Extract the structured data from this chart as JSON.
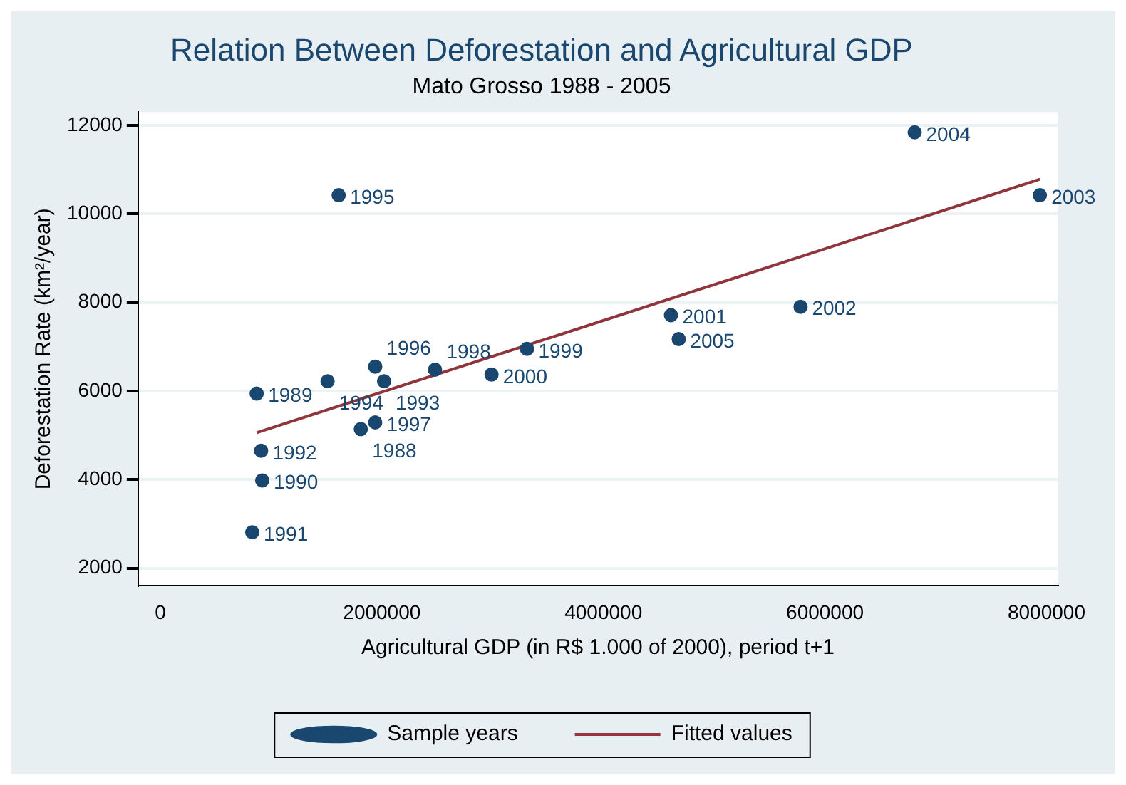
{
  "chart_data": {
    "type": "scatter",
    "title": "Relation Between Deforestation and Agricultural GDP",
    "subtitle": "Mato Grosso 1988 - 2005",
    "xlabel": "Agricultural GDP (in R$ 1.000 of 2000), period t+1",
    "ylabel": "Deforestation Rate (km²/year)",
    "xlim": [
      -200000,
      8100000
    ],
    "xticks": [
      0,
      2000000,
      4000000,
      6000000,
      8000000
    ],
    "ylim": [
      1600,
      12300
    ],
    "yticks": [
      2000,
      4000,
      6000,
      8000,
      10000,
      12000
    ],
    "grid": "y",
    "legend": "bottom",
    "marker": "circle",
    "series": [
      {
        "name": "Sample years",
        "color": "#1a476f",
        "x": [
          1810000,
          870000,
          920000,
          830000,
          910000,
          2020000,
          1510000,
          1610000,
          1940000,
          1940000,
          2480000,
          3310000,
          2990000,
          4610000,
          5780000,
          7940000,
          6810000,
          4680000
        ],
        "values": [
          5140,
          5940,
          3980,
          2810,
          4650,
          6220,
          6220,
          10420,
          6550,
          5290,
          6480,
          6950,
          6370,
          7710,
          7900,
          10420,
          11840,
          7170
        ]
      },
      {
        "name": "Fitted values",
        "color": "#90353b",
        "type": "line",
        "marker": "none",
        "line_style": "solid",
        "x": [
          870000,
          7940000
        ],
        "values": [
          5060,
          10780
        ]
      }
    ],
    "annotations": [
      {
        "text": "1988",
        "x": 1810000,
        "y": 5140
      },
      {
        "text": "1989",
        "x": 870000,
        "y": 5940
      },
      {
        "text": "1990",
        "x": 920000,
        "y": 3980
      },
      {
        "text": "1991",
        "x": 830000,
        "y": 2810
      },
      {
        "text": "1992",
        "x": 910000,
        "y": 4650
      },
      {
        "text": "1993",
        "x": 2020000,
        "y": 6220
      },
      {
        "text": "1994",
        "x": 1510000,
        "y": 6220
      },
      {
        "text": "1995",
        "x": 1610000,
        "y": 10420
      },
      {
        "text": "1996",
        "x": 1940000,
        "y": 6550
      },
      {
        "text": "1997",
        "x": 1940000,
        "y": 5290
      },
      {
        "text": "1998",
        "x": 2480000,
        "y": 6480
      },
      {
        "text": "1999",
        "x": 3310000,
        "y": 6950
      },
      {
        "text": "2000",
        "x": 2990000,
        "y": 6370
      },
      {
        "text": "2001",
        "x": 4610000,
        "y": 7710
      },
      {
        "text": "2002",
        "x": 5780000,
        "y": 7900
      },
      {
        "text": "2003",
        "x": 7940000,
        "y": 10420
      },
      {
        "text": "2004",
        "x": 6810000,
        "y": 11840
      },
      {
        "text": "2005",
        "x": 4680000,
        "y": 7170
      }
    ]
  }
}
